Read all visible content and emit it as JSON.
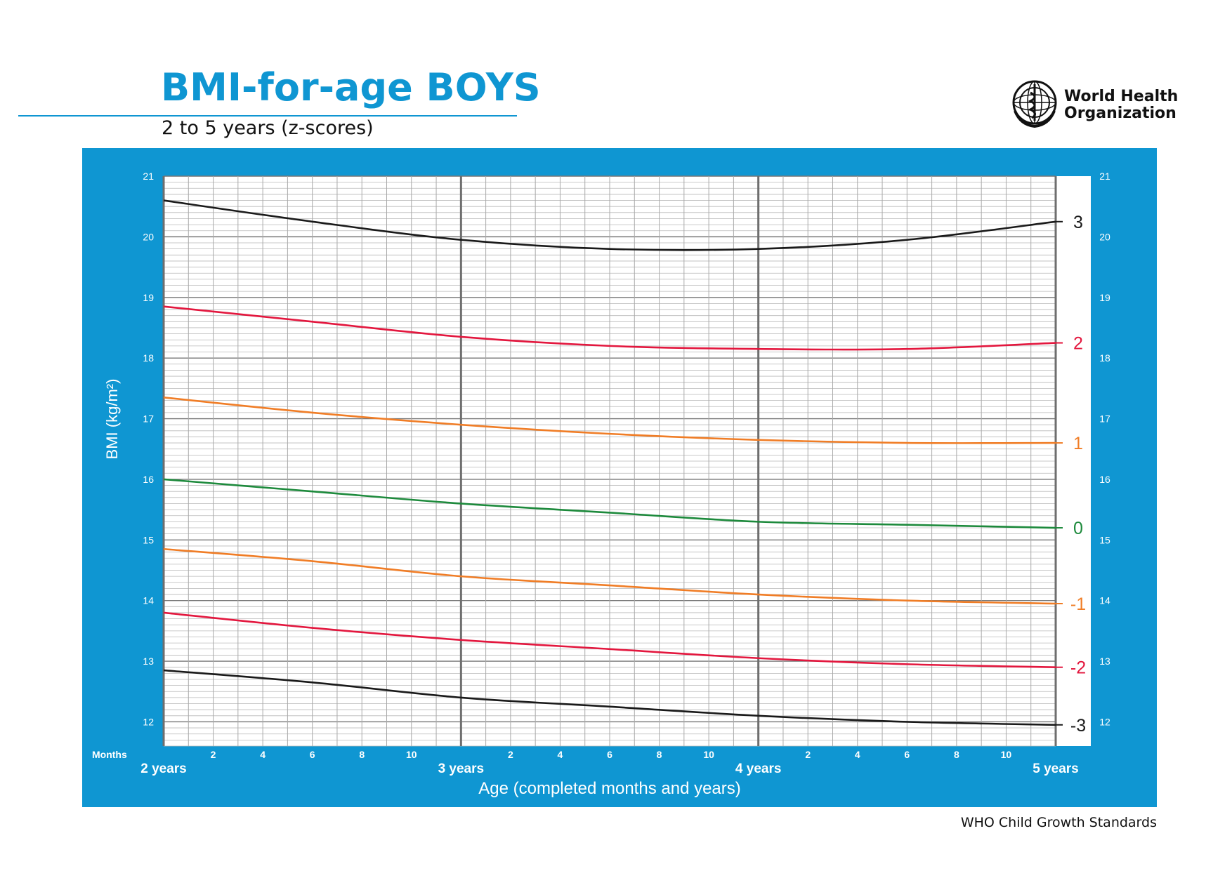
{
  "header": {
    "title": "BMI-for-age BOYS",
    "subtitle": "2 to 5 years (z-scores)",
    "org_line1": "World Health",
    "org_line2": "Organization",
    "logo": "who-emblem-icon"
  },
  "footer": {
    "text": "WHO Child Growth Standards"
  },
  "colors": {
    "brand_blue": "#0f96d2",
    "z3": "#1a1a1a",
    "z2": "#e3173e",
    "z1": "#f07d26",
    "z0": "#1d8a3c",
    "zm1": "#f07d26",
    "zm2": "#e3173e",
    "zm3": "#1a1a1a"
  },
  "chart_data": {
    "type": "line",
    "title": "BMI-for-age BOYS",
    "subtitle": "2 to 5 years (z-scores)",
    "xlabel": "Age (completed months and years)",
    "ylabel": "BMI (kg/m²)",
    "x_prefix_label": "Months",
    "xlim": [
      24,
      60
    ],
    "ylim": [
      11.6,
      21
    ],
    "y_ticks": [
      12,
      13,
      14,
      15,
      16,
      17,
      18,
      19,
      20,
      21
    ],
    "month_ticks": [
      "2",
      "4",
      "6",
      "8",
      "10"
    ],
    "year_labels": [
      {
        "x": 24,
        "label": "2 years"
      },
      {
        "x": 36,
        "label": "3 years"
      },
      {
        "x": 48,
        "label": "4 years"
      },
      {
        "x": 60,
        "label": "5 years"
      }
    ],
    "x": [
      24,
      30,
      36,
      42,
      48,
      54,
      60
    ],
    "series": [
      {
        "name": "3",
        "color": "#1a1a1a",
        "values": [
          20.6,
          20.25,
          19.95,
          19.8,
          19.8,
          19.95,
          20.25
        ]
      },
      {
        "name": "2",
        "color": "#e3173e",
        "values": [
          18.85,
          18.6,
          18.35,
          18.2,
          18.15,
          18.15,
          18.25
        ]
      },
      {
        "name": "1",
        "color": "#f07d26",
        "values": [
          17.35,
          17.1,
          16.9,
          16.75,
          16.65,
          16.6,
          16.6
        ]
      },
      {
        "name": "0",
        "color": "#1d8a3c",
        "values": [
          16.0,
          15.8,
          15.6,
          15.45,
          15.3,
          15.25,
          15.2
        ]
      },
      {
        "name": "-1",
        "color": "#f07d26",
        "values": [
          14.85,
          14.65,
          14.4,
          14.25,
          14.1,
          14.0,
          13.95
        ]
      },
      {
        "name": "-2",
        "color": "#e3173e",
        "values": [
          13.8,
          13.55,
          13.35,
          13.2,
          13.05,
          12.95,
          12.9
        ]
      },
      {
        "name": "-3",
        "color": "#1a1a1a",
        "values": [
          12.85,
          12.65,
          12.4,
          12.25,
          12.1,
          12.0,
          11.95
        ]
      }
    ]
  }
}
